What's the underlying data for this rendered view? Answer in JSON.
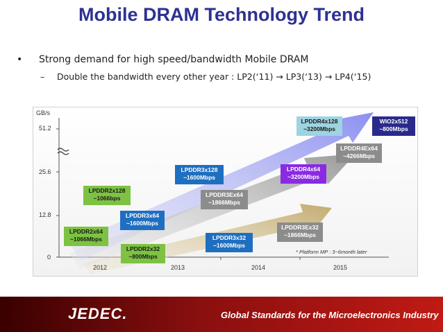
{
  "title": "Mobile DRAM Technology Trend",
  "bullet": {
    "symbol": "•",
    "text": "Strong demand for high speed/bandwidth Mobile DRAM"
  },
  "sub": {
    "dash": "–",
    "text": "Double the bandwidth every other year : LP2(‘11)  → LP3(‘13) → LP4(‘15)"
  },
  "chart": {
    "y_unit": "GB/s",
    "y_ticks": [
      "51.2",
      "25.6",
      "12.8",
      "0"
    ],
    "x_ticks": [
      "2012",
      "2013",
      "2014",
      "2015"
    ],
    "footnote": "*  Platform MP : 3~6month later",
    "boxes": [
      {
        "text": "LPDDR2x128\n~1066bps",
        "color": "#7dc242",
        "text_color": "#1a1a1a"
      },
      {
        "text": "LPDDR2x64\n~1066Mbps",
        "color": "#7dc242",
        "text_color": "#1a1a1a"
      },
      {
        "text": "LPDDR2x32\n~800Mbps",
        "color": "#7dc242",
        "text_color": "#1a1a1a"
      },
      {
        "text": "LPDDR3x64\n~1600Mbps",
        "color": "#1f6fc0",
        "text_color": "#ffffff"
      },
      {
        "text": "LPDDR3x128\n~1600Mbps",
        "color": "#1f6fc0",
        "text_color": "#ffffff"
      },
      {
        "text": "LPDDR3x32\n~1600Mbps",
        "color": "#1f6fc0",
        "text_color": "#ffffff"
      },
      {
        "text": "LPDDR3Ex64\n~1866Mbps",
        "color": "#8c8c8c",
        "text_color": "#ffffff"
      },
      {
        "text": "LPDDR3Ex32\n~1866Mbps",
        "color": "#8c8c8c",
        "text_color": "#ffffff"
      },
      {
        "text": "LPDDR4x64\n~3200Mbps",
        "color": "#8a2be2",
        "text_color": "#ffffff"
      },
      {
        "text": "LPDDR4x128\n~3200Mbps",
        "color": "#9ed3e0",
        "text_color": "#1a1a1a"
      },
      {
        "text": "LPDDR4Ex64\n~4266Mbps",
        "color": "#8c8c8c",
        "text_color": "#ffffff"
      },
      {
        "text": "WIO2x512\n~800Mbps",
        "color": "#2a2a8c",
        "text_color": "#ffffff"
      }
    ]
  },
  "footer": {
    "logo": "JEDEC.",
    "tagline": "Global Standards for the Microelectronics Industry"
  }
}
